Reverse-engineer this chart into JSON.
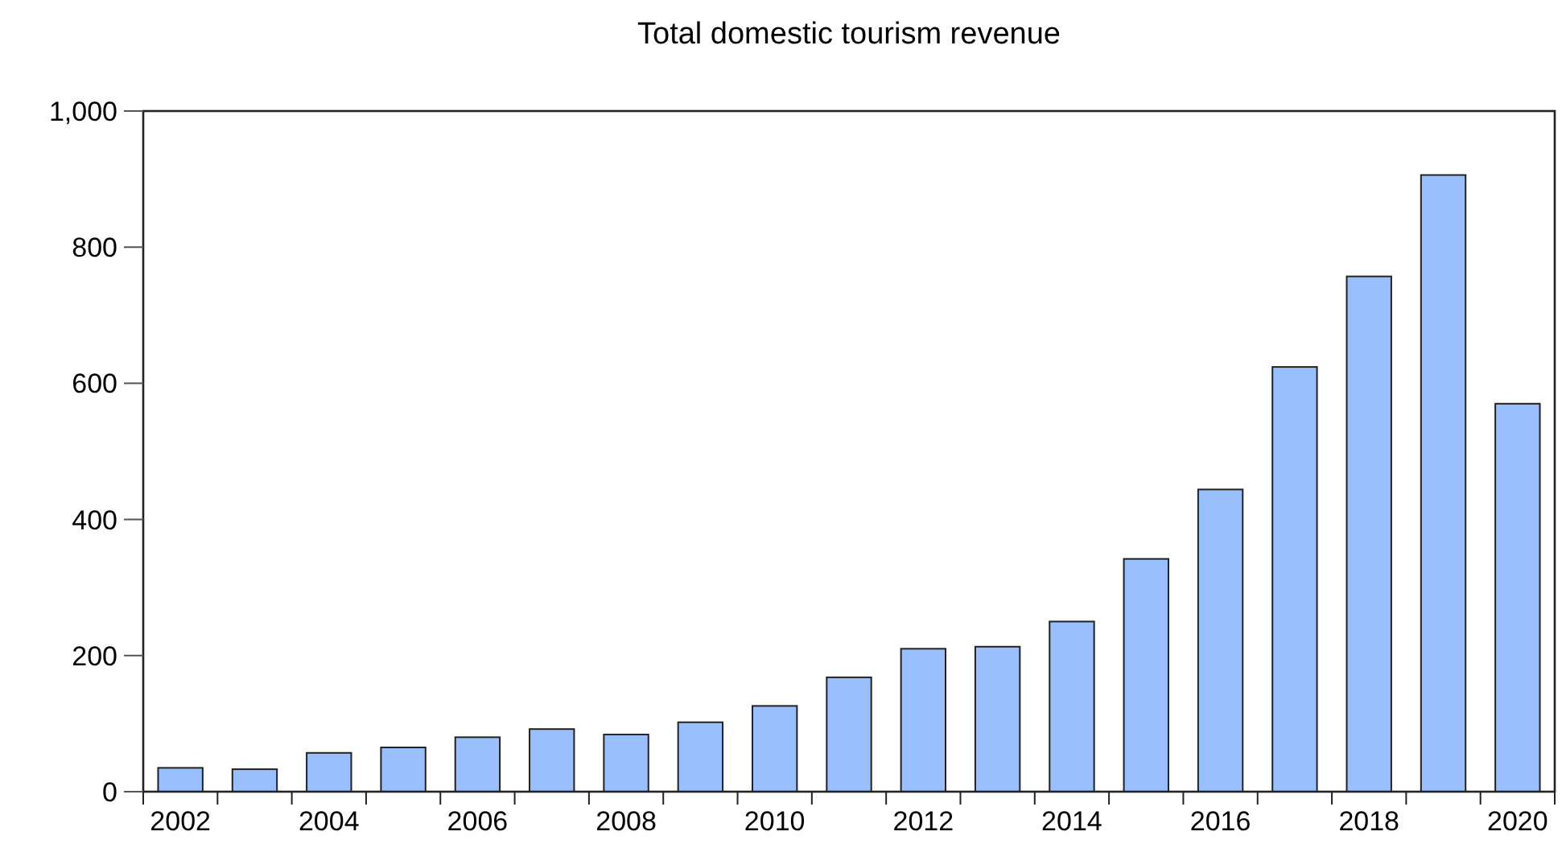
{
  "chart_data": {
    "type": "bar",
    "title": "Total domestic tourism revenue",
    "categories": [
      "2002",
      null,
      "2004",
      null,
      "2006",
      null,
      "2008",
      null,
      "2010",
      null,
      "2012",
      null,
      "2014",
      null,
      "2016",
      null,
      "2018",
      null,
      "2020"
    ],
    "values": [
      35,
      33,
      57,
      65,
      80,
      92,
      84,
      102,
      126,
      168,
      210,
      213,
      250,
      342,
      444,
      624,
      757,
      906,
      570
    ],
    "color": "#99bfff",
    "ylim": [
      0,
      1000
    ],
    "yticks": [
      0,
      200,
      400,
      600,
      800,
      {
        "value": 1000,
        "label": "1,000"
      }
    ],
    "grid": false
  }
}
